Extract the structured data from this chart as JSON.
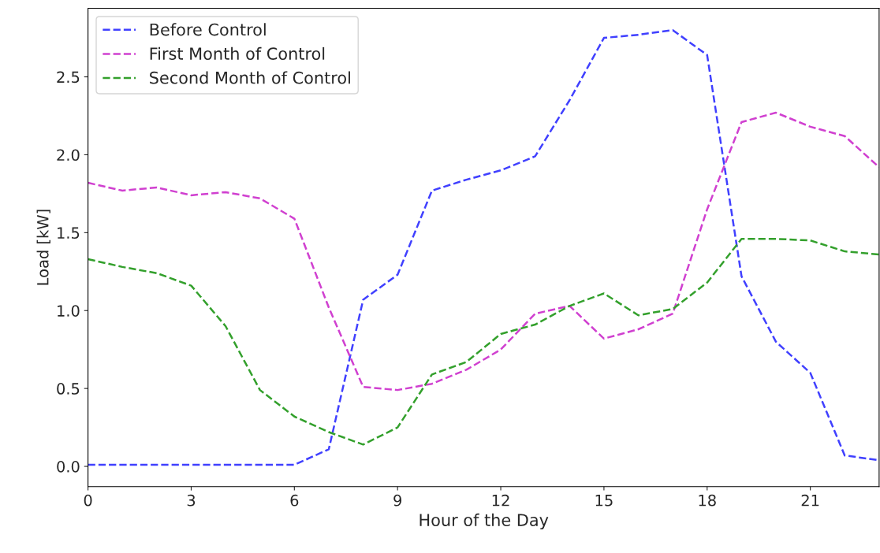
{
  "chart_data": {
    "type": "line",
    "xlabel": "Hour of the Day",
    "ylabel": "Load [kW]",
    "x": [
      0,
      1,
      2,
      3,
      4,
      5,
      6,
      7,
      8,
      9,
      10,
      11,
      12,
      13,
      14,
      15,
      16,
      17,
      18,
      19,
      20,
      21,
      22,
      23
    ],
    "series": [
      {
        "name": "Before Control",
        "color": "#4040ff",
        "values": [
          0.01,
          0.01,
          0.01,
          0.01,
          0.01,
          0.01,
          0.01,
          0.11,
          1.07,
          1.23,
          1.77,
          1.84,
          1.9,
          1.99,
          2.35,
          2.75,
          2.77,
          2.8,
          2.64,
          1.22,
          0.8,
          0.6,
          0.07,
          0.04
        ]
      },
      {
        "name": "First Month of Control",
        "color": "#d040d0",
        "values": [
          1.82,
          1.77,
          1.79,
          1.74,
          1.76,
          1.72,
          1.59,
          1.02,
          0.51,
          0.49,
          0.53,
          0.62,
          0.75,
          0.98,
          1.03,
          0.82,
          0.88,
          0.98,
          1.65,
          2.21,
          2.27,
          2.18,
          2.12,
          1.92
        ]
      },
      {
        "name": "Second Month of Control",
        "color": "#33a02c",
        "values": [
          1.33,
          1.28,
          1.24,
          1.16,
          0.9,
          0.49,
          0.32,
          0.22,
          0.14,
          0.25,
          0.59,
          0.67,
          0.85,
          0.91,
          1.03,
          1.11,
          0.97,
          1.01,
          1.18,
          1.46,
          1.46,
          1.45,
          1.38,
          1.36
        ]
      }
    ],
    "xlim": [
      0,
      23
    ],
    "ylim": [
      -0.13,
      2.94
    ],
    "xticks": [
      0,
      3,
      6,
      9,
      12,
      15,
      18,
      21
    ],
    "yticks": [
      {
        "value": 0,
        "label": "0.0"
      },
      {
        "value": 0.5,
        "label": "0.5"
      },
      {
        "value": 1,
        "label": "1.0"
      },
      {
        "value": 1.5,
        "label": "1.5"
      },
      {
        "value": 2,
        "label": "2.0"
      },
      {
        "value": 2.5,
        "label": "2.5"
      }
    ],
    "line_style": "dashed",
    "marker": "none",
    "legend": "top left",
    "grid": false
  }
}
